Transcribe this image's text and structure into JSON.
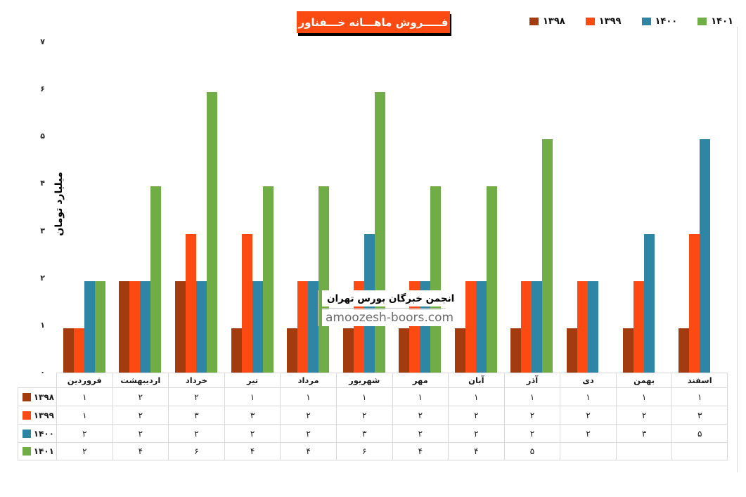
{
  "title": {
    "text": "فـــــروش ماهـــانه خـــفناور",
    "bg_color": "#FB4A12",
    "text_color": "#FFFFFF"
  },
  "watermark": {
    "line1": "انجمن خبرگان بورس تهران",
    "line2": "amoozesh-boors.com"
  },
  "chart_data": {
    "type": "bar",
    "title": "فـــــروش ماهـــانه خـــفناور",
    "xlabel": "",
    "ylabel": "میلیارد تومان",
    "ylim": [
      0,
      7
    ],
    "yticks": [
      "۰",
      "۱",
      "۲",
      "۳",
      "۴",
      "۵",
      "۶",
      "۷"
    ],
    "grid": false,
    "legend_position": "top-right",
    "bar_top_offset": 0.06,
    "categories": [
      "فروردین",
      "اردیبهشت",
      "خرداد",
      "تیر",
      "مرداد",
      "شهریور",
      "مهر",
      "آبان",
      "آذر",
      "دی",
      "بهمن",
      "اسفند"
    ],
    "series": [
      {
        "name": "۱۳۹۸",
        "color": "#A23B0E",
        "values": [
          1,
          2,
          2,
          1,
          1,
          1,
          1,
          1,
          1,
          1,
          1,
          1
        ]
      },
      {
        "name": "۱۳۹۹",
        "color": "#FB4A12",
        "values": [
          1,
          2,
          3,
          3,
          2,
          2,
          2,
          2,
          2,
          2,
          2,
          3
        ]
      },
      {
        "name": "۱۴۰۰",
        "color": "#2E86A4",
        "values": [
          2,
          2,
          2,
          2,
          2,
          3,
          2,
          2,
          2,
          2,
          3,
          5
        ]
      },
      {
        "name": "۱۴۰۱",
        "color": "#70AD47",
        "values": [
          2,
          4,
          6,
          4,
          4,
          6,
          4,
          4,
          5,
          null,
          null,
          null
        ]
      }
    ],
    "table_rows": [
      [
        "۱",
        "۲",
        "۲",
        "۱",
        "۱",
        "۱",
        "۱",
        "۱",
        "۱",
        "۱",
        "۱",
        "۱"
      ],
      [
        "۱",
        "۲",
        "۳",
        "۳",
        "۲",
        "۲",
        "۲",
        "۲",
        "۲",
        "۲",
        "۲",
        "۳"
      ],
      [
        "۲",
        "۲",
        "۲",
        "۲",
        "۲",
        "۳",
        "۲",
        "۲",
        "۲",
        "۲",
        "۳",
        "۵"
      ],
      [
        "۲",
        "۴",
        "۶",
        "۴",
        "۴",
        "۶",
        "۴",
        "۴",
        "۵",
        "",
        "",
        ""
      ]
    ]
  }
}
